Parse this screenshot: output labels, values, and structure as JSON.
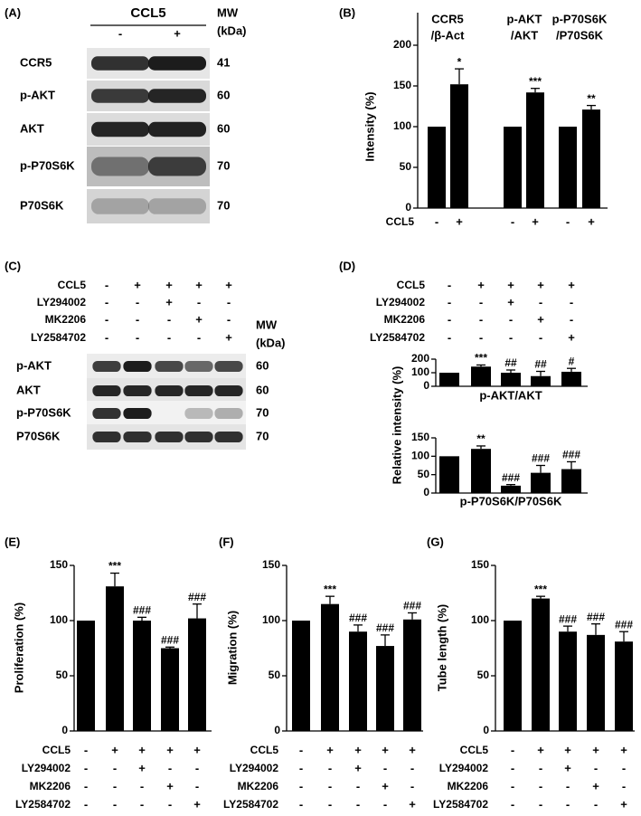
{
  "blots": [
    {
      "panel": "(A)",
      "header": "CCL5",
      "signs": [
        "-",
        "+"
      ],
      "mw_header": [
        "MW",
        "(kDa)"
      ],
      "rows": [
        {
          "name": "CCR5",
          "mw": 41
        },
        {
          "name": "p-AKT",
          "mw": 60
        },
        {
          "name": "AKT",
          "mw": 60
        },
        {
          "name": "p-P70S6K",
          "mw": 70
        },
        {
          "name": "P70S6K",
          "mw": 70
        }
      ]
    },
    {
      "panel": "(C)",
      "treatments": [
        {
          "name": "CCL5",
          "signs": [
            "-",
            "+",
            "+",
            "+",
            "+"
          ]
        },
        {
          "name": "LY294002",
          "signs": [
            "-",
            "-",
            "+",
            "-",
            "-"
          ]
        },
        {
          "name": "MK2206",
          "signs": [
            "-",
            "-",
            "-",
            "+",
            "-"
          ]
        },
        {
          "name": "LY2584702",
          "signs": [
            "-",
            "-",
            "-",
            "-",
            "+"
          ]
        }
      ],
      "mw_header": [
        "MW",
        "(kDa)"
      ],
      "rows": [
        {
          "name": "p-AKT",
          "mw": 60
        },
        {
          "name": "AKT",
          "mw": 60
        },
        {
          "name": "p-P70S6K",
          "mw": 70
        },
        {
          "name": "P70S6K",
          "mw": 70
        }
      ]
    }
  ],
  "chart_data": [
    {
      "type": "bar",
      "panel": "(B)",
      "ylabel": "Intensity  (%)",
      "group_labels": [
        [
          "CCR5",
          "/β-Act"
        ],
        [
          "p-AKT",
          "/AKT"
        ],
        [
          "p-P70S6K",
          "/P70S6K"
        ]
      ],
      "values": [
        100,
        152,
        100,
        142,
        100,
        121
      ],
      "errors": [
        null,
        19,
        null,
        5,
        null,
        5
      ],
      "sig_labels": [
        null,
        "*",
        null,
        "***",
        null,
        "**"
      ],
      "color": "#000000",
      "ylim": [
        0,
        240
      ],
      "yticks": [
        0,
        50,
        100,
        150,
        200
      ],
      "treatments": [
        {
          "name": "CCL5",
          "signs": [
            "-",
            "+",
            "-",
            "+",
            "-",
            "+"
          ]
        }
      ]
    },
    {
      "type": "bar",
      "panel": "(D)",
      "ylabel": "Relative intensity  (%)",
      "xlabel": "p-AKT/AKT",
      "values": [
        100,
        145,
        100,
        75,
        107
      ],
      "errors": [
        null,
        12,
        20,
        35,
        25
      ],
      "sig_labels": [
        null,
        "***",
        "##",
        "##",
        "#"
      ],
      "color": "#000000",
      "ylim": [
        0,
        200
      ],
      "yticks": [
        0,
        100,
        200
      ],
      "treatments": [
        {
          "name": "CCL5",
          "signs": [
            "-",
            "+",
            "+",
            "+",
            "+"
          ]
        },
        {
          "name": "LY294002",
          "signs": [
            "-",
            "-",
            "+",
            "-",
            "-"
          ]
        },
        {
          "name": "MK2206",
          "signs": [
            "-",
            "-",
            "-",
            "+",
            "-"
          ]
        },
        {
          "name": "LY2584702",
          "signs": [
            "-",
            "-",
            "-",
            "-",
            "+"
          ]
        }
      ]
    },
    {
      "type": "bar",
      "xlabel": "p-P70S6K/P70S6K",
      "values": [
        100,
        120,
        20,
        55,
        65
      ],
      "errors": [
        null,
        8,
        3,
        20,
        20
      ],
      "sig_labels": [
        null,
        "**",
        "###",
        "###",
        "###"
      ],
      "color": "#000000",
      "ylim": [
        0,
        150
      ],
      "yticks": [
        0,
        50,
        100,
        150
      ]
    },
    {
      "type": "bar",
      "panel": "(E)",
      "ylabel": "Proliferation (%)",
      "values": [
        100,
        131,
        100,
        75,
        102
      ],
      "errors": [
        null,
        12,
        3,
        1,
        13
      ],
      "sig_labels": [
        null,
        "***",
        "###",
        "###",
        "###"
      ],
      "color": "#000000",
      "ylim": [
        0,
        150
      ],
      "yticks": [
        0,
        50,
        100,
        150
      ],
      "treatments": [
        {
          "name": "CCL5",
          "signs": [
            "-",
            "+",
            "+",
            "+",
            "+"
          ]
        },
        {
          "name": "LY294002",
          "signs": [
            "-",
            "-",
            "+",
            "-",
            "-"
          ]
        },
        {
          "name": "MK2206",
          "signs": [
            "-",
            "-",
            "-",
            "+",
            "-"
          ]
        },
        {
          "name": "LY2584702",
          "signs": [
            "-",
            "-",
            "-",
            "-",
            "+"
          ]
        }
      ]
    },
    {
      "type": "bar",
      "panel": "(F)",
      "ylabel": "Migration (%)",
      "values": [
        100,
        115,
        90,
        77,
        101
      ],
      "errors": [
        null,
        7,
        6,
        10,
        6
      ],
      "sig_labels": [
        null,
        "***",
        "###",
        "###",
        "###"
      ],
      "color": "#000000",
      "ylim": [
        0,
        150
      ],
      "yticks": [
        0,
        50,
        100,
        150
      ],
      "treatments": [
        {
          "name": "CCL5",
          "signs": [
            "-",
            "+",
            "+",
            "+",
            "+"
          ]
        },
        {
          "name": "LY294002",
          "signs": [
            "-",
            "-",
            "+",
            "-",
            "-"
          ]
        },
        {
          "name": "MK2206",
          "signs": [
            "-",
            "-",
            "-",
            "+",
            "-"
          ]
        },
        {
          "name": "LY2584702",
          "signs": [
            "-",
            "-",
            "-",
            "-",
            "+"
          ]
        }
      ]
    },
    {
      "type": "bar",
      "panel": "(G)",
      "ylabel": "Tube length (%)",
      "values": [
        100,
        120,
        90,
        87,
        81
      ],
      "errors": [
        null,
        2,
        5,
        10,
        9
      ],
      "sig_labels": [
        null,
        "***",
        "###",
        "###",
        "###"
      ],
      "color": "#000000",
      "ylim": [
        0,
        150
      ],
      "yticks": [
        0,
        50,
        100,
        150
      ],
      "treatments": [
        {
          "name": "CCL5",
          "signs": [
            "-",
            "+",
            "+",
            "+",
            "+"
          ]
        },
        {
          "name": "LY294002",
          "signs": [
            "-",
            "-",
            "+",
            "-",
            "-"
          ]
        },
        {
          "name": "MK2206",
          "signs": [
            "-",
            "-",
            "-",
            "+",
            "-"
          ]
        },
        {
          "name": "LY2584702",
          "signs": [
            "-",
            "-",
            "-",
            "-",
            "+"
          ]
        }
      ]
    }
  ]
}
